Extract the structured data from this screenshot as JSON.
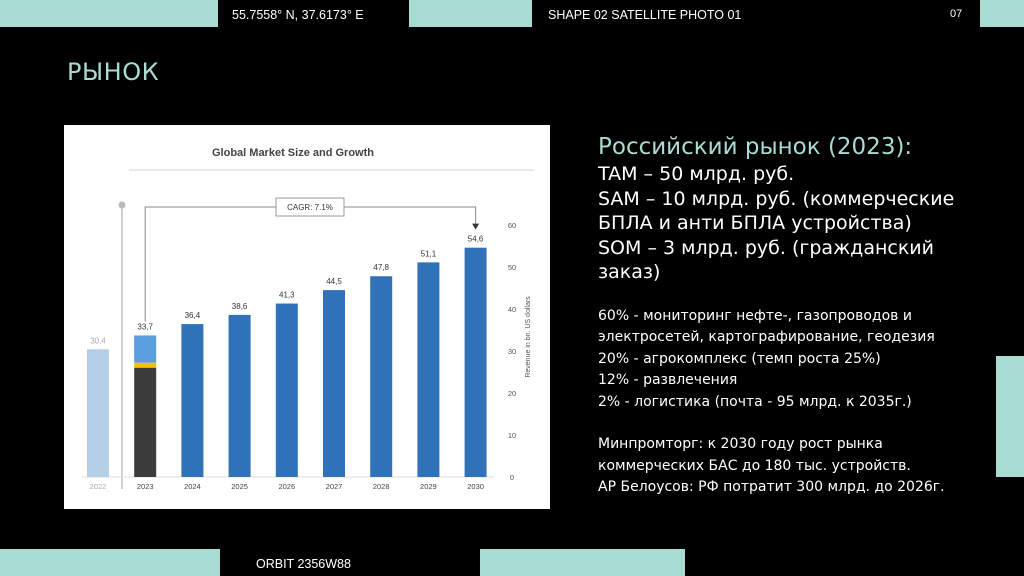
{
  "header": {
    "coords": "55.7558° N, 37.6173° E",
    "shape_label": "SHAPE 02 SATELLITE PHOTO 01",
    "page_number": "07"
  },
  "footer": {
    "orbit_label": "ORBIT 2356W88"
  },
  "slide": {
    "title": "РЫНОК"
  },
  "market": {
    "heading": "Российский рынок (2023):",
    "lines": [
      "TAM – 50 млрд. руб.",
      "SAM – 10 млрд. руб. (коммерческие",
      "БПЛА и анти БПЛА устройства)",
      "SOM – 3 млрд. руб. (гражданский",
      "заказ)"
    ],
    "segments": [
      "60% - мониторинг нефте-, газопроводов и",
      "электросетей, картографирование, геодезия",
      "20% - агрокомплекс (темп роста 25%)",
      "12% - развлечения",
      "2% - логистика (почта - 95 млрд. к 2035г.)"
    ],
    "notes": [
      "Минпромторг: к 2030 году рост рынка",
      "коммерческих БАС до 180 тыс. устройств.",
      "АР Белоусов: РФ потратит 300 млрд. до 2026г."
    ]
  },
  "chart_data": {
    "type": "bar",
    "title": "Global Market Size and Growth",
    "ylabel": "Revenue in bn. US dollars",
    "ylim": [
      0,
      60
    ],
    "yticks": [
      0,
      10,
      20,
      30,
      40,
      50,
      60
    ],
    "categories": [
      "2022",
      "2023",
      "2024",
      "2025",
      "2026",
      "2027",
      "2028",
      "2029",
      "2030"
    ],
    "values": [
      30.4,
      33.7,
      36.4,
      38.6,
      41.3,
      44.5,
      47.8,
      51.1,
      54.6
    ],
    "value_labels": [
      "30,4",
      "33,7",
      "36,4",
      "38,6",
      "41,3",
      "44,5",
      "47,8",
      "51,1",
      "54,6"
    ],
    "cagr_label": "CAGR: 7.1%",
    "colors": {
      "past": "#b4cfe6",
      "forecast": "#2f72b8",
      "split_dark": "#3b3b3b",
      "split_yellow": "#f2c200",
      "split_light": "#5a9ee0"
    },
    "grid": false
  }
}
